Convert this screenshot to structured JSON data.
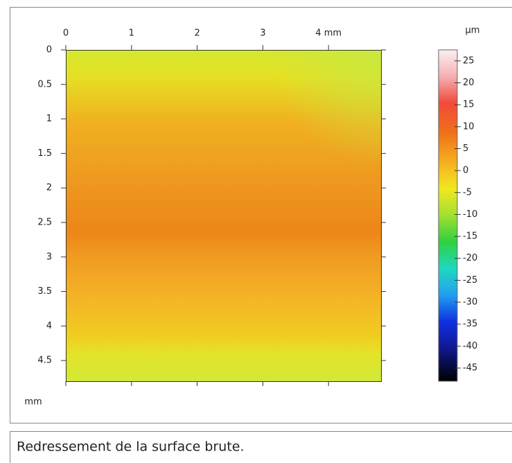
{
  "chart_data": {
    "type": "heatmap",
    "xlim": [
      0,
      4.8
    ],
    "xticks": [
      0,
      1,
      2,
      3,
      {
        "value": 4,
        "label": "4 mm"
      }
    ],
    "ylim": [
      0,
      4.8
    ],
    "yticks": [
      0,
      0.5,
      1,
      1.5,
      2,
      2.5,
      3,
      3.5,
      4,
      4.5
    ],
    "y_label": "mm",
    "colorbar_unit": "µm",
    "zlim": [
      -48,
      27.5
    ],
    "zticks": [
      25,
      20,
      15,
      10,
      5,
      0,
      -5,
      -10,
      -15,
      -20,
      -25,
      -30,
      -35,
      -40,
      -45
    ],
    "caption": "Redressement de la surface brute."
  }
}
